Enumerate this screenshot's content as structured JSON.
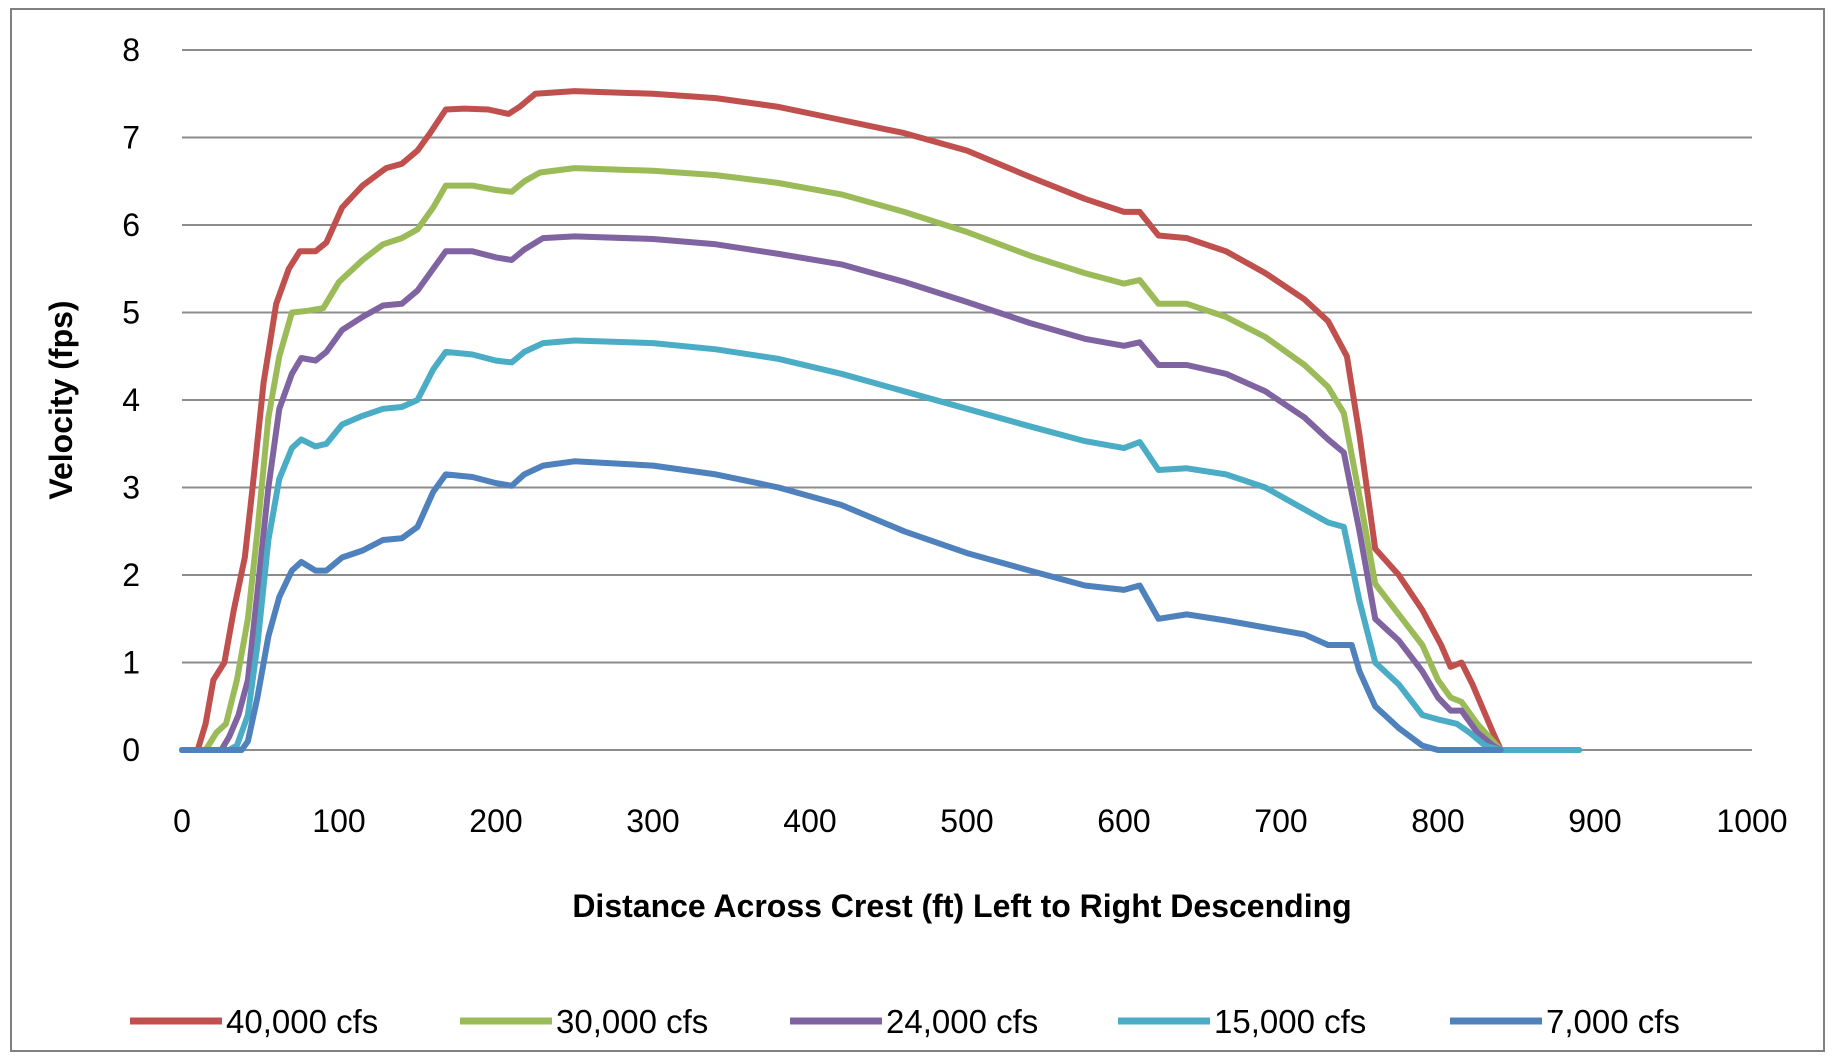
{
  "chart_data": {
    "type": "line",
    "title": "",
    "xlabel": "Distance Across Crest (ft) Left to Right Descending",
    "ylabel": "Velocity (fps)",
    "xlim": [
      0,
      1000
    ],
    "ylim": [
      0,
      8
    ],
    "xticks": [
      0,
      100,
      200,
      300,
      400,
      500,
      600,
      700,
      800,
      900,
      1000
    ],
    "yticks": [
      0,
      1,
      2,
      3,
      4,
      5,
      6,
      7,
      8
    ],
    "grid": "horizontal",
    "legend_position": "bottom",
    "series": [
      {
        "name": "40,000 cfs",
        "color": "#C0504D",
        "points": [
          [
            0,
            0
          ],
          [
            10,
            0
          ],
          [
            15,
            0.3
          ],
          [
            20,
            0.8
          ],
          [
            27,
            1.0
          ],
          [
            33,
            1.6
          ],
          [
            40,
            2.2
          ],
          [
            45,
            3.0
          ],
          [
            52,
            4.2
          ],
          [
            60,
            5.1
          ],
          [
            68,
            5.5
          ],
          [
            75,
            5.7
          ],
          [
            85,
            5.7
          ],
          [
            92,
            5.8
          ],
          [
            102,
            6.2
          ],
          [
            115,
            6.45
          ],
          [
            130,
            6.65
          ],
          [
            140,
            6.7
          ],
          [
            150,
            6.85
          ],
          [
            158,
            7.05
          ],
          [
            168,
            7.32
          ],
          [
            180,
            7.33
          ],
          [
            195,
            7.32
          ],
          [
            208,
            7.27
          ],
          [
            215,
            7.35
          ],
          [
            225,
            7.5
          ],
          [
            250,
            7.53
          ],
          [
            300,
            7.5
          ],
          [
            340,
            7.45
          ],
          [
            380,
            7.35
          ],
          [
            420,
            7.2
          ],
          [
            460,
            7.05
          ],
          [
            500,
            6.85
          ],
          [
            540,
            6.55
          ],
          [
            575,
            6.3
          ],
          [
            600,
            6.15
          ],
          [
            610,
            6.15
          ],
          [
            622,
            5.88
          ],
          [
            640,
            5.85
          ],
          [
            665,
            5.7
          ],
          [
            690,
            5.45
          ],
          [
            715,
            5.15
          ],
          [
            730,
            4.9
          ],
          [
            742,
            4.5
          ],
          [
            750,
            3.6
          ],
          [
            760,
            2.3
          ],
          [
            775,
            2.0
          ],
          [
            790,
            1.6
          ],
          [
            802,
            1.2
          ],
          [
            808,
            0.95
          ],
          [
            815,
            1.0
          ],
          [
            822,
            0.75
          ],
          [
            835,
            0.2
          ],
          [
            840,
            0
          ]
        ]
      },
      {
        "name": "30,000 cfs",
        "color": "#9BBB59",
        "points": [
          [
            0,
            0
          ],
          [
            15,
            0
          ],
          [
            22,
            0.2
          ],
          [
            28,
            0.3
          ],
          [
            35,
            0.8
          ],
          [
            42,
            1.5
          ],
          [
            48,
            2.5
          ],
          [
            55,
            3.8
          ],
          [
            62,
            4.5
          ],
          [
            70,
            5.0
          ],
          [
            80,
            5.02
          ],
          [
            90,
            5.05
          ],
          [
            100,
            5.35
          ],
          [
            115,
            5.6
          ],
          [
            128,
            5.78
          ],
          [
            140,
            5.85
          ],
          [
            150,
            5.95
          ],
          [
            160,
            6.2
          ],
          [
            168,
            6.45
          ],
          [
            185,
            6.45
          ],
          [
            200,
            6.4
          ],
          [
            210,
            6.38
          ],
          [
            218,
            6.5
          ],
          [
            228,
            6.6
          ],
          [
            250,
            6.65
          ],
          [
            300,
            6.62
          ],
          [
            340,
            6.57
          ],
          [
            380,
            6.48
          ],
          [
            420,
            6.35
          ],
          [
            460,
            6.15
          ],
          [
            500,
            5.92
          ],
          [
            540,
            5.65
          ],
          [
            575,
            5.45
          ],
          [
            600,
            5.33
          ],
          [
            610,
            5.37
          ],
          [
            622,
            5.1
          ],
          [
            640,
            5.1
          ],
          [
            665,
            4.95
          ],
          [
            690,
            4.72
          ],
          [
            715,
            4.4
          ],
          [
            730,
            4.15
          ],
          [
            740,
            3.85
          ],
          [
            750,
            2.9
          ],
          [
            760,
            1.9
          ],
          [
            775,
            1.55
          ],
          [
            790,
            1.2
          ],
          [
            800,
            0.8
          ],
          [
            808,
            0.6
          ],
          [
            815,
            0.55
          ],
          [
            825,
            0.3
          ],
          [
            835,
            0.1
          ],
          [
            840,
            0
          ]
        ]
      },
      {
        "name": "24,000 cfs",
        "color": "#8064A2",
        "points": [
          [
            0,
            0
          ],
          [
            25,
            0
          ],
          [
            30,
            0.15
          ],
          [
            36,
            0.4
          ],
          [
            42,
            0.8
          ],
          [
            48,
            1.8
          ],
          [
            55,
            3.0
          ],
          [
            62,
            3.9
          ],
          [
            70,
            4.3
          ],
          [
            76,
            4.48
          ],
          [
            85,
            4.45
          ],
          [
            92,
            4.55
          ],
          [
            102,
            4.8
          ],
          [
            115,
            4.95
          ],
          [
            128,
            5.08
          ],
          [
            140,
            5.1
          ],
          [
            150,
            5.25
          ],
          [
            160,
            5.5
          ],
          [
            168,
            5.7
          ],
          [
            185,
            5.7
          ],
          [
            200,
            5.63
          ],
          [
            210,
            5.6
          ],
          [
            218,
            5.72
          ],
          [
            230,
            5.85
          ],
          [
            250,
            5.87
          ],
          [
            300,
            5.84
          ],
          [
            340,
            5.78
          ],
          [
            380,
            5.67
          ],
          [
            420,
            5.55
          ],
          [
            460,
            5.35
          ],
          [
            500,
            5.12
          ],
          [
            540,
            4.88
          ],
          [
            575,
            4.7
          ],
          [
            600,
            4.62
          ],
          [
            610,
            4.66
          ],
          [
            622,
            4.4
          ],
          [
            640,
            4.4
          ],
          [
            665,
            4.3
          ],
          [
            690,
            4.1
          ],
          [
            715,
            3.8
          ],
          [
            730,
            3.55
          ],
          [
            740,
            3.4
          ],
          [
            750,
            2.5
          ],
          [
            760,
            1.5
          ],
          [
            775,
            1.25
          ],
          [
            790,
            0.9
          ],
          [
            800,
            0.6
          ],
          [
            808,
            0.45
          ],
          [
            815,
            0.45
          ],
          [
            825,
            0.2
          ],
          [
            835,
            0.05
          ],
          [
            840,
            0
          ]
        ]
      },
      {
        "name": "15,000 cfs",
        "color": "#4BACC6",
        "points": [
          [
            0,
            0
          ],
          [
            30,
            0
          ],
          [
            35,
            0.05
          ],
          [
            42,
            0.4
          ],
          [
            48,
            1.2
          ],
          [
            55,
            2.4
          ],
          [
            62,
            3.1
          ],
          [
            70,
            3.45
          ],
          [
            76,
            3.55
          ],
          [
            85,
            3.47
          ],
          [
            92,
            3.5
          ],
          [
            102,
            3.72
          ],
          [
            115,
            3.82
          ],
          [
            128,
            3.9
          ],
          [
            140,
            3.92
          ],
          [
            150,
            4.0
          ],
          [
            160,
            4.35
          ],
          [
            168,
            4.55
          ],
          [
            185,
            4.52
          ],
          [
            200,
            4.45
          ],
          [
            210,
            4.43
          ],
          [
            218,
            4.55
          ],
          [
            230,
            4.65
          ],
          [
            250,
            4.68
          ],
          [
            300,
            4.65
          ],
          [
            340,
            4.58
          ],
          [
            380,
            4.47
          ],
          [
            420,
            4.3
          ],
          [
            460,
            4.1
          ],
          [
            500,
            3.9
          ],
          [
            540,
            3.7
          ],
          [
            575,
            3.53
          ],
          [
            600,
            3.45
          ],
          [
            610,
            3.52
          ],
          [
            622,
            3.2
          ],
          [
            640,
            3.22
          ],
          [
            665,
            3.15
          ],
          [
            690,
            3.0
          ],
          [
            715,
            2.75
          ],
          [
            730,
            2.6
          ],
          [
            740,
            2.55
          ],
          [
            750,
            1.7
          ],
          [
            760,
            1.0
          ],
          [
            775,
            0.75
          ],
          [
            790,
            0.4
          ],
          [
            800,
            0.35
          ],
          [
            812,
            0.3
          ],
          [
            820,
            0.2
          ],
          [
            830,
            0.05
          ],
          [
            840,
            0
          ],
          [
            890,
            0
          ]
        ]
      },
      {
        "name": "7,000 cfs",
        "color": "#4F81BD",
        "points": [
          [
            0,
            0
          ],
          [
            38,
            0
          ],
          [
            42,
            0.1
          ],
          [
            48,
            0.6
          ],
          [
            55,
            1.3
          ],
          [
            62,
            1.75
          ],
          [
            70,
            2.05
          ],
          [
            76,
            2.15
          ],
          [
            85,
            2.05
          ],
          [
            92,
            2.05
          ],
          [
            102,
            2.2
          ],
          [
            115,
            2.28
          ],
          [
            128,
            2.4
          ],
          [
            140,
            2.42
          ],
          [
            150,
            2.55
          ],
          [
            160,
            2.95
          ],
          [
            168,
            3.15
          ],
          [
            185,
            3.12
          ],
          [
            200,
            3.05
          ],
          [
            210,
            3.02
          ],
          [
            218,
            3.15
          ],
          [
            230,
            3.25
          ],
          [
            250,
            3.3
          ],
          [
            300,
            3.25
          ],
          [
            340,
            3.15
          ],
          [
            380,
            3.0
          ],
          [
            420,
            2.8
          ],
          [
            460,
            2.5
          ],
          [
            500,
            2.25
          ],
          [
            540,
            2.05
          ],
          [
            575,
            1.88
          ],
          [
            600,
            1.83
          ],
          [
            610,
            1.88
          ],
          [
            622,
            1.5
          ],
          [
            640,
            1.55
          ],
          [
            665,
            1.48
          ],
          [
            690,
            1.4
          ],
          [
            715,
            1.32
          ],
          [
            730,
            1.2
          ],
          [
            745,
            1.2
          ],
          [
            750,
            0.9
          ],
          [
            760,
            0.5
          ],
          [
            775,
            0.25
          ],
          [
            790,
            0.05
          ],
          [
            800,
            0
          ],
          [
            840,
            0
          ]
        ]
      }
    ]
  }
}
